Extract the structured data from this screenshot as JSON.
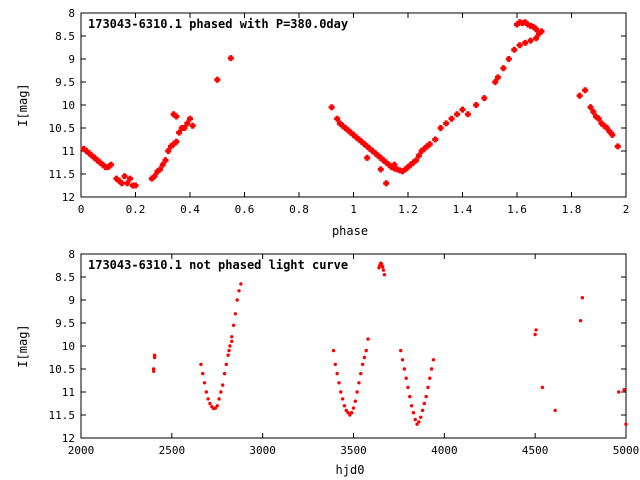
{
  "chart_data": [
    {
      "type": "scatter",
      "title": "173043-6310.1 phased with P=380.0day",
      "xlabel": "phase",
      "ylabel": "I[mag]",
      "xlim": [
        0,
        2
      ],
      "ylim": [
        12,
        8
      ],
      "y_inverted": true,
      "xticks": [
        0,
        0.2,
        0.4,
        0.6,
        0.8,
        1,
        1.2,
        1.4,
        1.6,
        1.8,
        2
      ],
      "yticks": [
        8,
        8.5,
        9,
        9.5,
        10,
        10.5,
        11,
        11.5,
        12
      ],
      "grid": false,
      "series": [
        {
          "color": "#ff0000",
          "marker": "plus",
          "points": [
            [
              0.01,
              10.95
            ],
            [
              0.02,
              11.0
            ],
            [
              0.03,
              11.05
            ],
            [
              0.04,
              11.1
            ],
            [
              0.05,
              11.15
            ],
            [
              0.06,
              11.2
            ],
            [
              0.07,
              11.25
            ],
            [
              0.08,
              11.3
            ],
            [
              0.09,
              11.35
            ],
            [
              0.1,
              11.35
            ],
            [
              0.11,
              11.3
            ],
            [
              0.13,
              11.6
            ],
            [
              0.14,
              11.65
            ],
            [
              0.15,
              11.7
            ],
            [
              0.16,
              11.55
            ],
            [
              0.17,
              11.7
            ],
            [
              0.18,
              11.6
            ],
            [
              0.19,
              11.75
            ],
            [
              0.2,
              11.75
            ],
            [
              0.26,
              11.6
            ],
            [
              0.27,
              11.55
            ],
            [
              0.28,
              11.45
            ],
            [
              0.29,
              11.4
            ],
            [
              0.3,
              11.3
            ],
            [
              0.31,
              11.2
            ],
            [
              0.32,
              11.0
            ],
            [
              0.33,
              10.9
            ],
            [
              0.34,
              10.85
            ],
            [
              0.35,
              10.8
            ],
            [
              0.34,
              10.2
            ],
            [
              0.35,
              10.25
            ],
            [
              0.36,
              10.6
            ],
            [
              0.37,
              10.5
            ],
            [
              0.38,
              10.5
            ],
            [
              0.39,
              10.4
            ],
            [
              0.4,
              10.3
            ],
            [
              0.41,
              10.45
            ],
            [
              0.5,
              9.45
            ],
            [
              0.55,
              8.98
            ],
            [
              0.92,
              10.05
            ],
            [
              0.94,
              10.3
            ],
            [
              0.95,
              10.4
            ],
            [
              0.96,
              10.45
            ],
            [
              0.97,
              10.5
            ],
            [
              0.98,
              10.55
            ],
            [
              0.99,
              10.6
            ],
            [
              1.0,
              10.65
            ],
            [
              1.01,
              10.7
            ],
            [
              1.02,
              10.75
            ],
            [
              1.03,
              10.8
            ],
            [
              1.04,
              10.85
            ],
            [
              1.05,
              10.9
            ],
            [
              1.06,
              10.95
            ],
            [
              1.07,
              11.0
            ],
            [
              1.08,
              11.05
            ],
            [
              1.09,
              11.1
            ],
            [
              1.1,
              11.15
            ],
            [
              1.11,
              11.2
            ],
            [
              1.12,
              11.25
            ],
            [
              1.13,
              11.3
            ],
            [
              1.14,
              11.35
            ],
            [
              1.15,
              11.38
            ],
            [
              1.16,
              11.4
            ],
            [
              1.17,
              11.42
            ],
            [
              1.18,
              11.44
            ],
            [
              1.19,
              11.4
            ],
            [
              1.2,
              11.35
            ],
            [
              1.21,
              11.3
            ],
            [
              1.22,
              11.25
            ],
            [
              1.23,
              11.2
            ],
            [
              1.24,
              11.1
            ],
            [
              1.25,
              11.0
            ],
            [
              1.26,
              10.95
            ],
            [
              1.27,
              10.9
            ],
            [
              1.28,
              10.85
            ],
            [
              1.3,
              10.75
            ],
            [
              1.32,
              10.5
            ],
            [
              1.34,
              10.4
            ],
            [
              1.36,
              10.3
            ],
            [
              1.38,
              10.2
            ],
            [
              1.4,
              10.1
            ],
            [
              1.42,
              10.2
            ],
            [
              1.45,
              10.0
            ],
            [
              1.48,
              9.85
            ],
            [
              1.52,
              9.5
            ],
            [
              1.53,
              9.4
            ],
            [
              1.55,
              9.2
            ],
            [
              1.57,
              9.0
            ],
            [
              1.59,
              8.8
            ],
            [
              1.61,
              8.7
            ],
            [
              1.63,
              8.65
            ],
            [
              1.65,
              8.6
            ],
            [
              1.67,
              8.55
            ],
            [
              1.68,
              8.45
            ],
            [
              1.6,
              8.25
            ],
            [
              1.61,
              8.2
            ],
            [
              1.62,
              8.22
            ],
            [
              1.63,
              8.2
            ],
            [
              1.64,
              8.25
            ],
            [
              1.65,
              8.28
            ],
            [
              1.66,
              8.3
            ],
            [
              1.67,
              8.35
            ],
            [
              1.69,
              8.4
            ],
            [
              1.83,
              9.8
            ],
            [
              1.85,
              9.68
            ],
            [
              1.87,
              10.05
            ],
            [
              1.88,
              10.15
            ],
            [
              1.89,
              10.25
            ],
            [
              1.9,
              10.3
            ],
            [
              1.91,
              10.4
            ],
            [
              1.92,
              10.45
            ],
            [
              1.93,
              10.5
            ],
            [
              1.94,
              10.58
            ],
            [
              1.95,
              10.65
            ],
            [
              1.97,
              10.9
            ],
            [
              1.12,
              11.7
            ],
            [
              1.1,
              11.4
            ],
            [
              1.15,
              11.3
            ],
            [
              1.05,
              11.15
            ]
          ]
        }
      ]
    },
    {
      "type": "scatter",
      "title": "173043-6310.1 not phased light curve",
      "xlabel": "hjd0",
      "ylabel": "I[mag]",
      "xlim": [
        2000,
        5000
      ],
      "ylim": [
        12,
        8
      ],
      "y_inverted": true,
      "xticks": [
        2000,
        2500,
        3000,
        3500,
        4000,
        4500,
        5000
      ],
      "yticks": [
        8,
        8.5,
        9,
        9.5,
        10,
        10.5,
        11,
        11.5,
        12
      ],
      "grid": false,
      "series": [
        {
          "color": "#ff0000",
          "marker": "dot",
          "points": [
            [
              2400,
              10.5
            ],
            [
              2400,
              10.55
            ],
            [
              2405,
              10.2
            ],
            [
              2405,
              10.25
            ],
            [
              2660,
              10.4
            ],
            [
              2670,
              10.6
            ],
            [
              2680,
              10.8
            ],
            [
              2690,
              11.0
            ],
            [
              2700,
              11.15
            ],
            [
              2710,
              11.25
            ],
            [
              2720,
              11.32
            ],
            [
              2730,
              11.36
            ],
            [
              2740,
              11.35
            ],
            [
              2750,
              11.3
            ],
            [
              2760,
              11.15
            ],
            [
              2770,
              11.0
            ],
            [
              2780,
              10.85
            ],
            [
              2790,
              10.6
            ],
            [
              2800,
              10.4
            ],
            [
              2810,
              10.2
            ],
            [
              2820,
              10.0
            ],
            [
              2830,
              9.8
            ],
            [
              2840,
              9.55
            ],
            [
              2850,
              9.3
            ],
            [
              2860,
              9.0
            ],
            [
              2870,
              8.8
            ],
            [
              2880,
              8.65
            ],
            [
              2815,
              10.1
            ],
            [
              2830,
              9.9
            ],
            [
              3390,
              10.1
            ],
            [
              3400,
              10.4
            ],
            [
              3410,
              10.6
            ],
            [
              3420,
              10.8
            ],
            [
              3430,
              11.0
            ],
            [
              3440,
              11.15
            ],
            [
              3450,
              11.3
            ],
            [
              3460,
              11.4
            ],
            [
              3470,
              11.45
            ],
            [
              3480,
              11.5
            ],
            [
              3490,
              11.45
            ],
            [
              3500,
              11.35
            ],
            [
              3510,
              11.2
            ],
            [
              3520,
              11.0
            ],
            [
              3530,
              10.8
            ],
            [
              3540,
              10.6
            ],
            [
              3550,
              10.4
            ],
            [
              3560,
              10.25
            ],
            [
              3570,
              10.1
            ],
            [
              3580,
              9.85
            ],
            [
              3640,
              8.3
            ],
            [
              3645,
              8.25
            ],
            [
              3650,
              8.2
            ],
            [
              3655,
              8.22
            ],
            [
              3660,
              8.28
            ],
            [
              3665,
              8.35
            ],
            [
              3670,
              8.45
            ],
            [
              3760,
              10.1
            ],
            [
              3770,
              10.3
            ],
            [
              3780,
              10.5
            ],
            [
              3790,
              10.7
            ],
            [
              3800,
              10.9
            ],
            [
              3810,
              11.1
            ],
            [
              3820,
              11.3
            ],
            [
              3830,
              11.45
            ],
            [
              3840,
              11.6
            ],
            [
              3850,
              11.7
            ],
            [
              3860,
              11.65
            ],
            [
              3870,
              11.55
            ],
            [
              3880,
              11.4
            ],
            [
              3890,
              11.25
            ],
            [
              3900,
              11.1
            ],
            [
              3910,
              10.9
            ],
            [
              3920,
              10.7
            ],
            [
              3930,
              10.5
            ],
            [
              3940,
              10.3
            ],
            [
              4500,
              9.75
            ],
            [
              4505,
              9.65
            ],
            [
              4540,
              10.9
            ],
            [
              4610,
              11.4
            ],
            [
              4750,
              9.45
            ],
            [
              4760,
              8.95
            ],
            [
              4960,
              11.0
            ],
            [
              4990,
              10.95
            ],
            [
              5000,
              11.7
            ]
          ]
        }
      ]
    }
  ]
}
